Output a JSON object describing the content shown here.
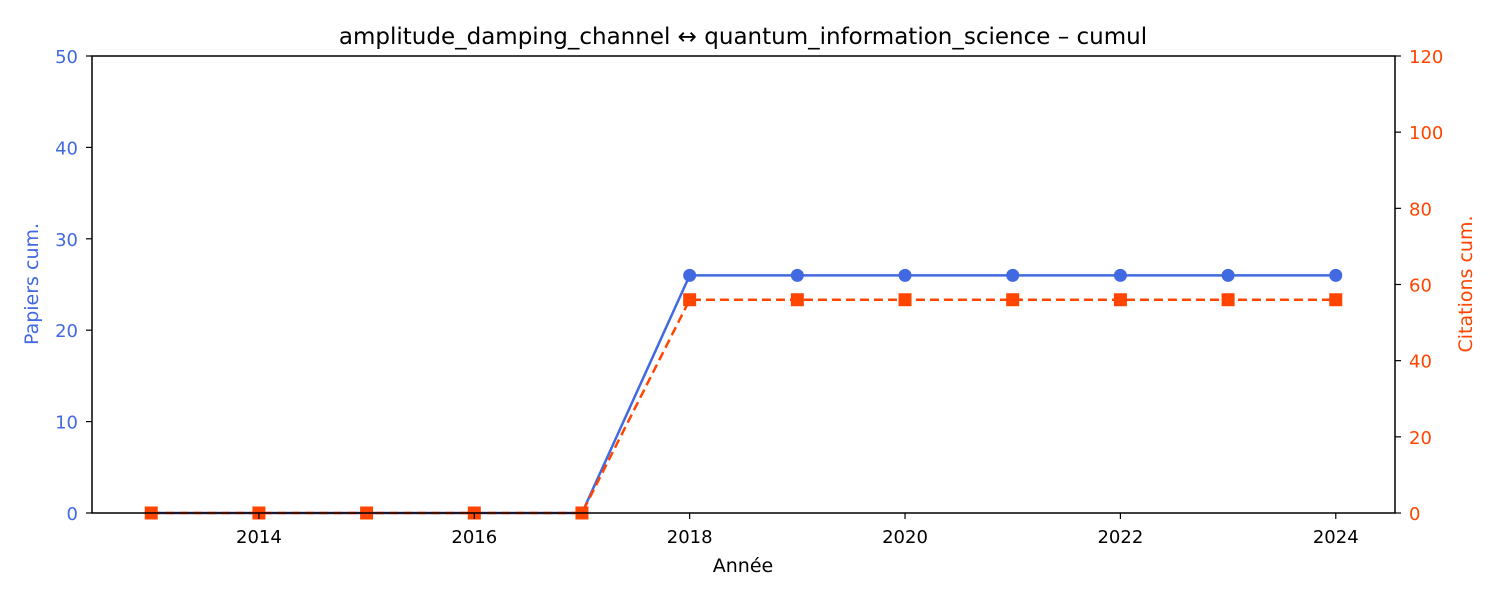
{
  "chart_data": {
    "type": "line",
    "title": "amplitude_damping_channel  ↔  quantum_information_science  –  cumul",
    "xlabel": "Année",
    "x": [
      2013,
      2014,
      2015,
      2016,
      2017,
      2018,
      2019,
      2020,
      2021,
      2022,
      2023,
      2024
    ],
    "x_ticks": [
      "2014",
      "2016",
      "2018",
      "2020",
      "2022",
      "2024"
    ],
    "xlim": [
      2012.45,
      2024.55
    ],
    "y_left": {
      "label": "Papiers cum.",
      "ylim": [
        0,
        50
      ],
      "ticks": [
        "0",
        "10",
        "20",
        "30",
        "40",
        "50"
      ],
      "color": "#4169e1"
    },
    "y_right": {
      "label": "Citations cum.",
      "ylim": [
        0,
        120
      ],
      "ticks": [
        "0",
        "20",
        "40",
        "60",
        "80",
        "100",
        "120"
      ],
      "color": "#ff4500"
    },
    "series": [
      {
        "axis": "left",
        "color": "#4169e1",
        "line_style": "solid",
        "marker": "circle",
        "values": [
          0,
          0,
          0,
          0,
          0,
          26,
          26,
          26,
          26,
          26,
          26,
          26
        ]
      },
      {
        "axis": "right",
        "color": "#ff4500",
        "line_style": "dashed",
        "marker": "square",
        "values": [
          0,
          0,
          0,
          0,
          0,
          56,
          56,
          56,
          56,
          56,
          56,
          56
        ]
      }
    ],
    "grid": false,
    "legend": "none"
  }
}
